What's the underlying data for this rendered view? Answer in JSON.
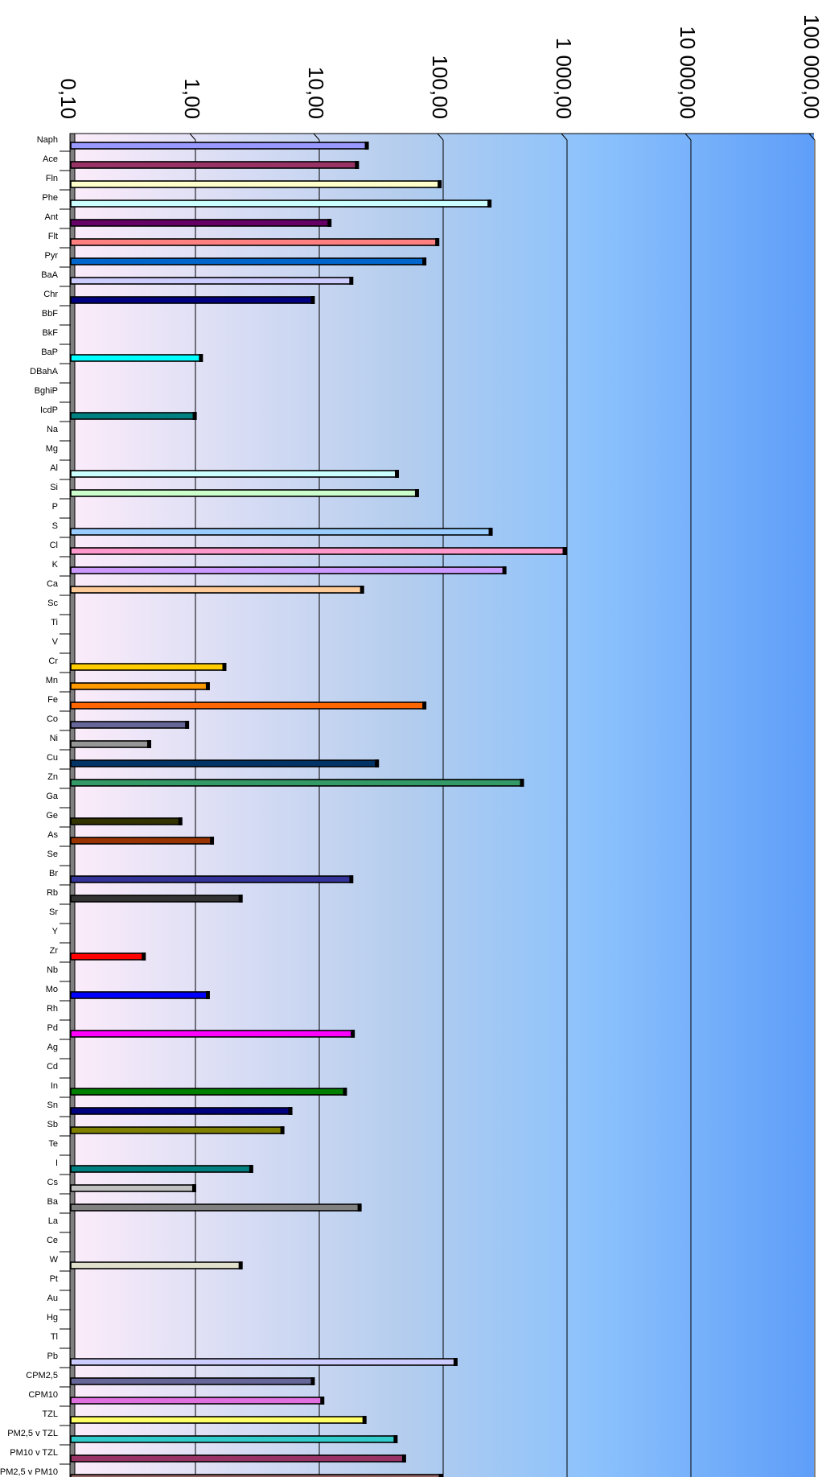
{
  "chart_data": {
    "type": "bar",
    "orientation": "horizontal",
    "x_scale": "log",
    "xlim": [
      0.1,
      100000
    ],
    "grid": true,
    "tick_labels": [
      "0,10",
      "1,00",
      "10,00",
      "100,00",
      "1 000,00",
      "10 000,00",
      "100 000,00"
    ],
    "tick_values": [
      0.1,
      1,
      10,
      100,
      1000,
      10000,
      100000
    ],
    "categories": [
      "Naph",
      "Ace",
      "Fln",
      "Phe",
      "Ant",
      "Flt",
      "Pyr",
      "BaA",
      "Chr",
      "BbF",
      "BkF",
      "BaP",
      "DBahA",
      "BghiP",
      "IcdP",
      "Na",
      "Mg",
      "Al",
      "Si",
      "P",
      "S",
      "Cl",
      "K",
      "Ca",
      "Sc",
      "Ti",
      "V",
      "Cr",
      "Mn",
      "Fe",
      "Co",
      "Ni",
      "Cu",
      "Zn",
      "Ga",
      "Ge",
      "As",
      "Se",
      "Br",
      "Rb",
      "Sr",
      "Y",
      "Zr",
      "Nb",
      "Mo",
      "Rh",
      "Pd",
      "Ag",
      "Cd",
      "In",
      "Sn",
      "Sb",
      "Te",
      "I",
      "Cs",
      "Ba",
      "La",
      "Ce",
      "W",
      "Pt",
      "Au",
      "Hg",
      "Tl",
      "Pb",
      "CPM2,5",
      "CPM10",
      "TZL",
      "PM2,5 v TZL",
      "PM10 v TZL",
      "PM2,5 v PM10"
    ],
    "values": [
      24,
      20,
      93,
      235,
      12,
      89,
      70,
      18,
      8.8,
      null,
      null,
      1.1,
      null,
      null,
      0.98,
      null,
      null,
      42,
      61,
      null,
      240,
      950,
      310,
      22,
      null,
      null,
      null,
      1.7,
      1.25,
      70,
      0.85,
      0.42,
      29,
      430,
      null,
      0.75,
      1.35,
      null,
      18,
      2.3,
      null,
      null,
      0.38,
      null,
      1.25,
      null,
      18.5,
      null,
      null,
      16,
      5.8,
      5,
      null,
      2.8,
      0.97,
      21,
      null,
      null,
      2.3,
      null,
      null,
      null,
      null,
      125,
      8.8,
      10.5,
      23,
      41,
      48,
      95
    ],
    "colors": [
      "#9999ff",
      "#993366",
      "#ffffcc",
      "#ccffff",
      "#660066",
      "#ff8080",
      "#0066cc",
      "#ccccff",
      "#000080",
      "#999999",
      "#999999",
      "#00ffff",
      "#999999",
      "#999999",
      "#008080",
      "#999999",
      "#999999",
      "#ccffff",
      "#ccffcc",
      "#999999",
      "#99ccff",
      "#ff99cc",
      "#cc99ff",
      "#ffcc99",
      "#999999",
      "#999999",
      "#999999",
      "#ffcc00",
      "#ff9900",
      "#ff6600",
      "#666699",
      "#969696",
      "#003366",
      "#339966",
      "#999999",
      "#333300",
      "#993300",
      "#999999",
      "#333399",
      "#333333",
      "#999999",
      "#999999",
      "#ff0000",
      "#999999",
      "#0000ff",
      "#999999",
      "#ff00ff",
      "#999999",
      "#999999",
      "#008000",
      "#000080",
      "#808000",
      "#999999",
      "#008080",
      "#c0c0c0",
      "#808080",
      "#999999",
      "#999999",
      "#e0e0cc",
      "#999999",
      "#999999",
      "#999999",
      "#999999",
      "#ccccff",
      "#666699",
      "#e070e0",
      "#ffff66",
      "#33cccc",
      "#993366",
      "#996666"
    ]
  }
}
